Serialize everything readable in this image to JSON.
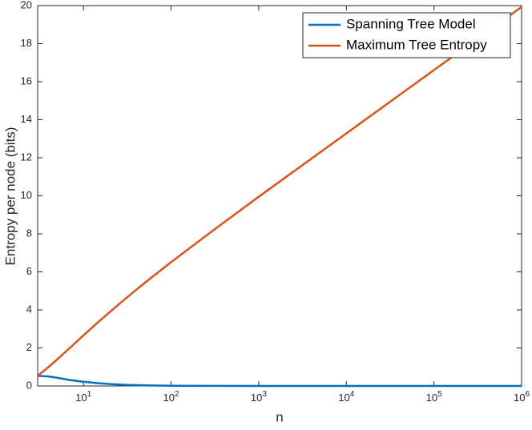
{
  "chart_data": {
    "type": "line",
    "x_label": "n",
    "y_label": "Entropy per node (bits)",
    "x": [
      3,
      4,
      5,
      7,
      10,
      15,
      20,
      30,
      50,
      100,
      300,
      1000,
      10000,
      100000,
      1000000
    ],
    "series": [
      {
        "name": "Spanning Tree Model",
        "color": "#0072BD",
        "values": [
          0.53,
          0.5,
          0.43,
          0.31,
          0.22,
          0.14,
          0.1,
          0.06,
          0.03,
          0.01,
          0.003,
          0.001,
          0,
          0,
          0
        ]
      },
      {
        "name": "Maximum Tree Entropy",
        "color": "#D95319",
        "values": [
          0.53,
          1.0,
          1.39,
          2.0,
          2.66,
          3.39,
          3.89,
          4.58,
          5.42,
          6.51,
          8.17,
          9.95,
          13.28,
          16.61,
          19.93
        ]
      }
    ],
    "xlim": [
      3,
      1000000
    ],
    "x_log": true,
    "xticks": [
      {
        "value": 10,
        "label": "10",
        "exponent": "1"
      },
      {
        "value": 100,
        "label": "10",
        "exponent": "2"
      },
      {
        "value": 1000,
        "label": "10",
        "exponent": "3"
      },
      {
        "value": 10000,
        "label": "10",
        "exponent": "4"
      },
      {
        "value": 100000,
        "label": "10",
        "exponent": "5"
      },
      {
        "value": 1000000,
        "label": "10",
        "exponent": "6"
      }
    ],
    "ylim": [
      0,
      20
    ],
    "yticks": [
      0,
      2,
      4,
      6,
      8,
      10,
      12,
      14,
      16,
      18,
      20
    ],
    "grid": false,
    "legend_position": "top-right"
  }
}
